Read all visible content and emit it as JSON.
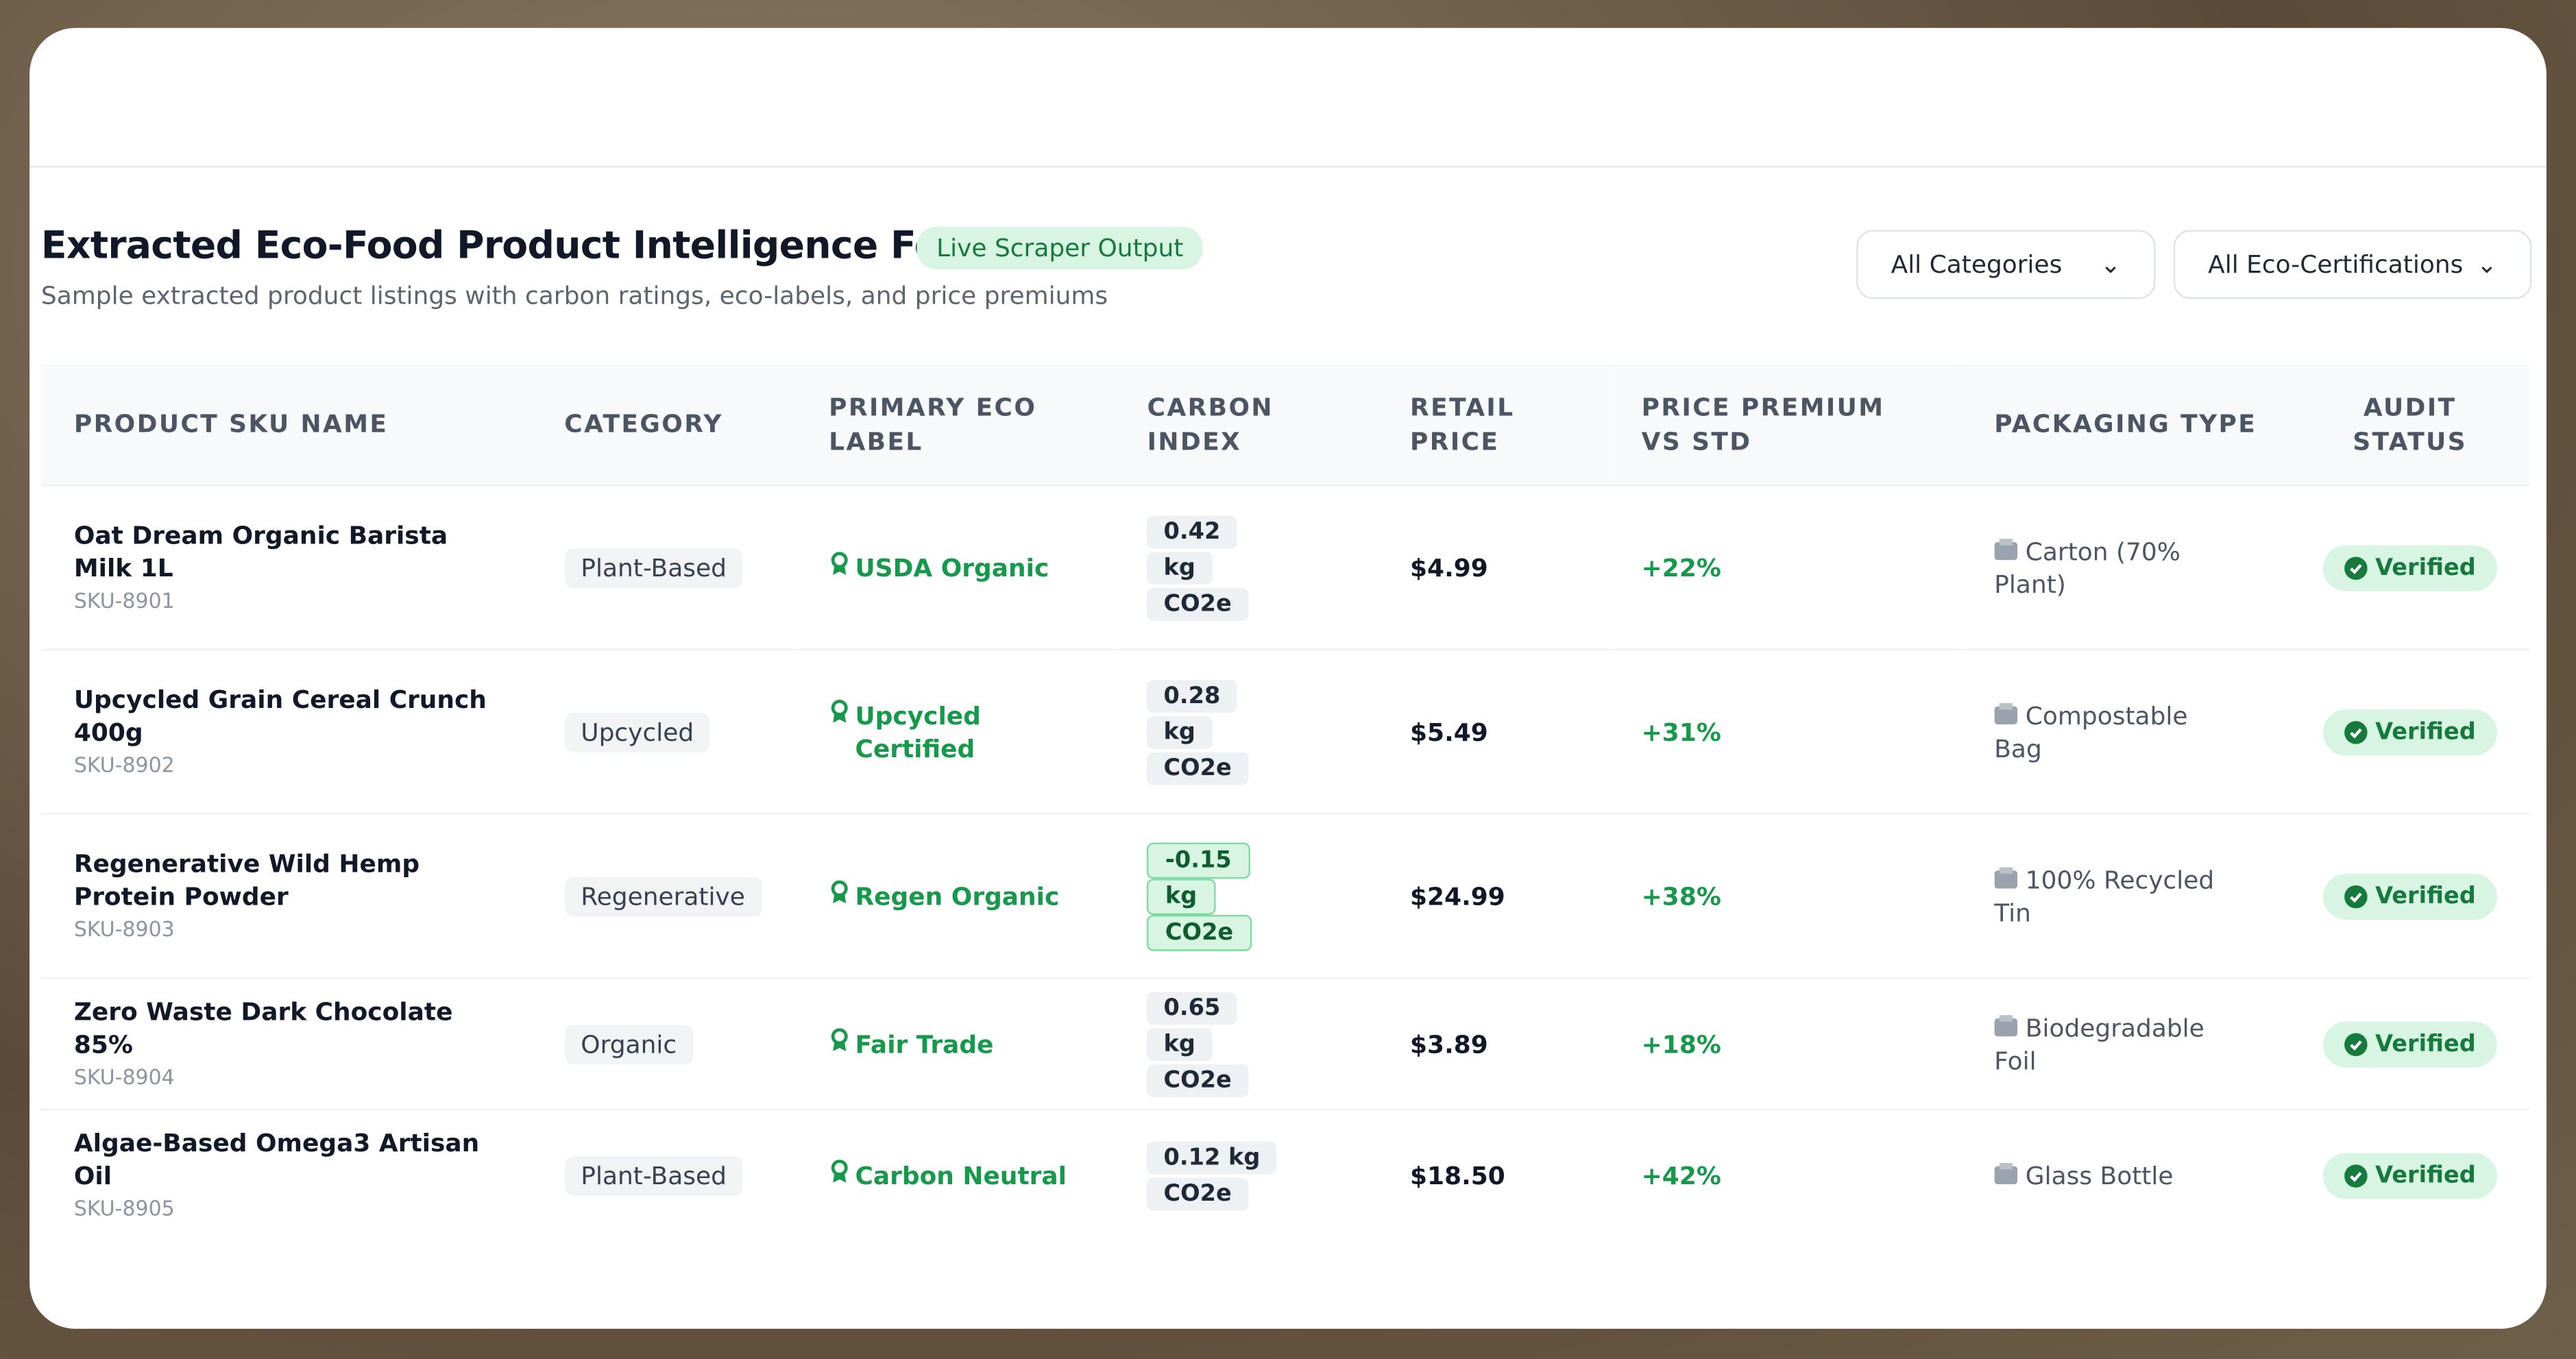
{
  "header": {
    "title": "Extracted Eco-Food Product Intelligence Feed",
    "badge": "Live Scraper Output",
    "subtitle": "Sample extracted product listings with carbon ratings, eco-labels, and price premiums"
  },
  "filters": [
    "All Categories",
    "All Eco-Certifications"
  ],
  "table": {
    "columns": [
      "PRODUCT SKU NAME",
      "CATEGORY",
      "PRIMARY ECO LABEL",
      "CARBON INDEX",
      "RETAIL PRICE",
      "PRICE PREMIUM VS STD",
      "PACKAGING TYPE",
      "AUDIT STATUS"
    ],
    "rows": [
      {
        "name": "Oat Dream Organic Barista Milk 1L",
        "sku": "SKU-8901",
        "category": "Plant-Based",
        "label": "USDA Organic",
        "carbon": "0.42 kg CO2e",
        "price": "$4.99",
        "premium": "+22%",
        "packaging": "Carton (70% Plant)",
        "status": "Verified"
      },
      {
        "name": "Upcycled Grain Cereal Crunch 400g",
        "sku": "SKU-8902",
        "category": "Upcycled",
        "label": "Upcycled Certified",
        "carbon": "0.28 kg CO2e",
        "price": "$5.49",
        "premium": "+31%",
        "packaging": "Compostable Bag",
        "status": "Verified"
      },
      {
        "name": "Regenerative Wild Hemp Protein Powder",
        "sku": "SKU-8903",
        "category": "Regenerative",
        "label": "Regen Organic",
        "carbon": "-0.15 kg CO2e",
        "price": "$24.99",
        "premium": "+38%",
        "packaging": "100% Recycled Tin",
        "status": "Verified"
      },
      {
        "name": "Zero Waste Dark Chocolate 85%",
        "sku": "SKU-8904",
        "category": "Organic",
        "label": "Fair Trade",
        "carbon": "0.65 kg CO2e",
        "price": "$3.89",
        "premium": "+18%",
        "packaging": "Biodegradable Foil",
        "status": "Verified"
      },
      {
        "name": "Algae-Based Omega3 Artisan Oil",
        "sku": "SKU-8905",
        "category": "Plant-Based",
        "label": "Carbon Neutral",
        "carbon": "0.12 kg CO2e",
        "price": "$18.50",
        "premium": "+42%",
        "packaging": "Glass Bottle",
        "status": "Verified"
      }
    ]
  }
}
